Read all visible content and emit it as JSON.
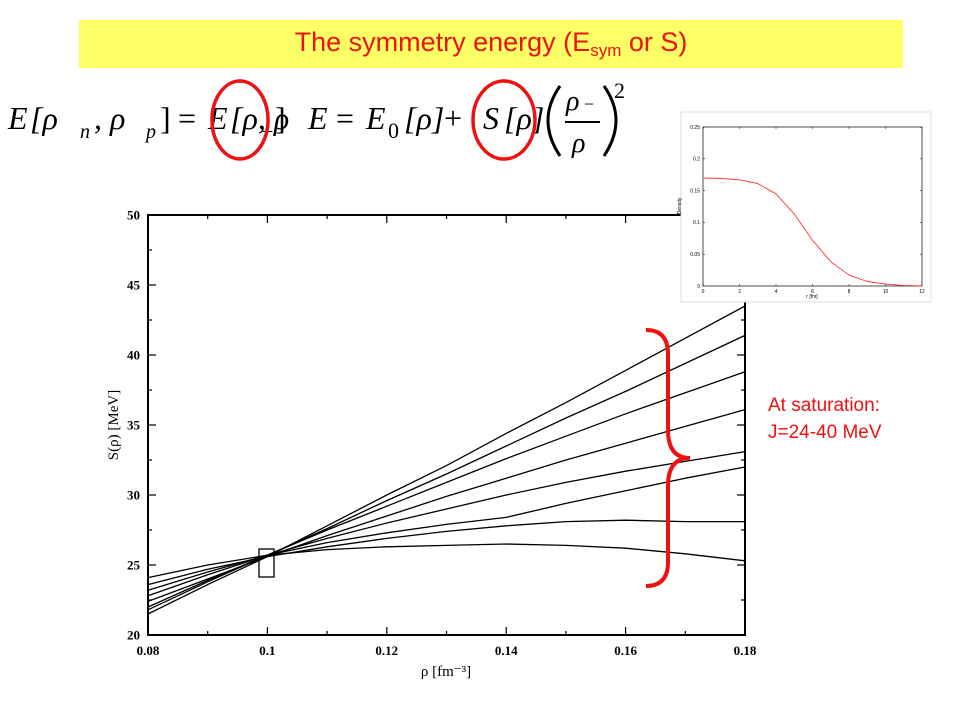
{
  "header": {
    "title_main": "The symmetry energy (E",
    "title_sub": "sym",
    "title_end": " or S)"
  },
  "equation": {
    "lhs_E": "E",
    "lhs_args": "[ρ",
    "n_sub": "n",
    "comma_rho": ", ρ",
    "p_sub": "p",
    "close": "]",
    "equals": "=",
    "rhs_E": "E",
    "rhs_args": "[ρ, ρ",
    "minus_sub": "−",
    "rhs_close": "]",
    "E_label": "E",
    "equals2": "=",
    "E0": "E",
    "zero_sub": "0",
    "E0_args": "[ρ]",
    "plus": "+",
    "S_label": "S",
    "S_args": "[ρ]",
    "frac_num": "ρ",
    "frac_den": "ρ",
    "exponent": "2"
  },
  "annotation": {
    "line1": "At saturation:",
    "line2": "J=24-40 MeV"
  },
  "colors": {
    "title_band": "#ffff66",
    "accent_red": "#ee1111",
    "curve_black": "#000000",
    "inset_curve": "#ff3333"
  },
  "chart_data": [
    {
      "type": "line",
      "title": "",
      "xlabel": "ρ [fm⁻³]",
      "ylabel": "S(ρ) [MeV]",
      "xlim": [
        0.08,
        0.18
      ],
      "ylim": [
        20,
        50
      ],
      "xticks": [
        "0.08",
        "0.1",
        "0.12",
        "0.14",
        "0.16",
        "0.18"
      ],
      "yticks": [
        "20",
        "25",
        "30",
        "35",
        "40",
        "45",
        "50"
      ],
      "x": [
        0.08,
        0.09,
        0.1,
        0.11,
        0.12,
        0.13,
        0.14,
        0.15,
        0.16,
        0.17,
        0.18
      ],
      "series": [
        {
          "values": [
            21.8,
            23.8,
            25.7,
            27.6,
            29.6,
            31.5,
            33.5,
            35.5,
            37.4,
            39.4,
            41.4
          ]
        },
        {
          "values": [
            21.5,
            23.6,
            25.6,
            27.8,
            30.0,
            32.1,
            34.4,
            36.6,
            38.9,
            41.2,
            43.5
          ]
        },
        {
          "values": [
            22.0,
            23.9,
            25.7,
            27.5,
            29.2,
            30.9,
            32.6,
            34.2,
            35.8,
            37.3,
            38.8
          ]
        },
        {
          "values": [
            22.4,
            24.0,
            25.6,
            27.1,
            28.5,
            29.9,
            31.2,
            32.5,
            33.7,
            34.9,
            36.1
          ]
        },
        {
          "values": [
            22.8,
            24.3,
            25.7,
            26.9,
            28.0,
            29.0,
            30.0,
            30.9,
            31.7,
            32.4,
            33.1
          ]
        },
        {
          "values": [
            23.2,
            24.5,
            25.7,
            26.6,
            27.3,
            27.9,
            28.4,
            29.4,
            30.3,
            31.2,
            32.0
          ]
        },
        {
          "values": [
            23.6,
            24.7,
            25.6,
            26.3,
            26.9,
            27.4,
            27.8,
            28.1,
            28.2,
            28.1,
            28.1
          ]
        },
        {
          "values": [
            24.1,
            25.0,
            25.7,
            26.1,
            26.3,
            26.4,
            26.5,
            26.4,
            26.2,
            25.8,
            25.3
          ]
        }
      ]
    },
    {
      "type": "line",
      "title": "",
      "xlabel": "r [fm]",
      "ylabel": "Density",
      "xlim": [
        0,
        12
      ],
      "ylim": [
        0,
        0.25
      ],
      "xticks": [
        "0",
        "2",
        "4",
        "6",
        "8",
        "10",
        "12"
      ],
      "yticks": [
        "0",
        "0.05",
        "0.1",
        "0.15",
        "0.2",
        "0.25"
      ],
      "x": [
        0,
        1,
        2,
        3,
        4,
        5,
        6,
        7,
        8,
        9,
        10,
        11,
        12
      ],
      "series": [
        {
          "values": [
            0.17,
            0.169,
            0.167,
            0.161,
            0.145,
            0.113,
            0.072,
            0.038,
            0.017,
            0.007,
            0.003,
            0.001,
            0.0
          ]
        }
      ]
    }
  ]
}
